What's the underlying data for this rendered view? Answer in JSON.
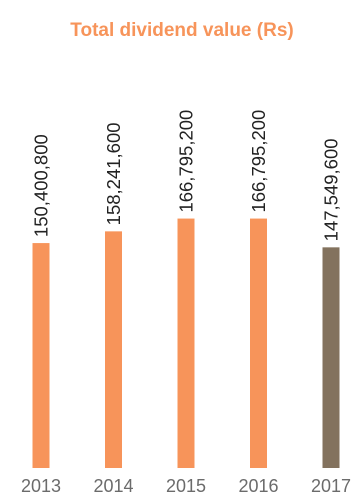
{
  "colors": {
    "title": "#f7945a",
    "bar_default": "#f7945a",
    "bar_highlight": "#83725e",
    "value_label": "#222222",
    "tick_label": "#6b6b6b"
  },
  "chart_data": {
    "type": "bar",
    "title": "Total dividend value (Rs)",
    "xlabel": "",
    "ylabel": "",
    "categories": [
      "2013",
      "2014",
      "2015",
      "2016",
      "2017"
    ],
    "values": [
      150400800,
      158241600,
      166795200,
      166795200,
      147549600
    ],
    "value_labels": [
      "150,400,800",
      "158,241,600",
      "166,795,200",
      "166,795,200",
      "147,549,600"
    ],
    "highlight_index": 4,
    "ylim": [
      0,
      222000000
    ],
    "grid": false,
    "legend": "none"
  }
}
